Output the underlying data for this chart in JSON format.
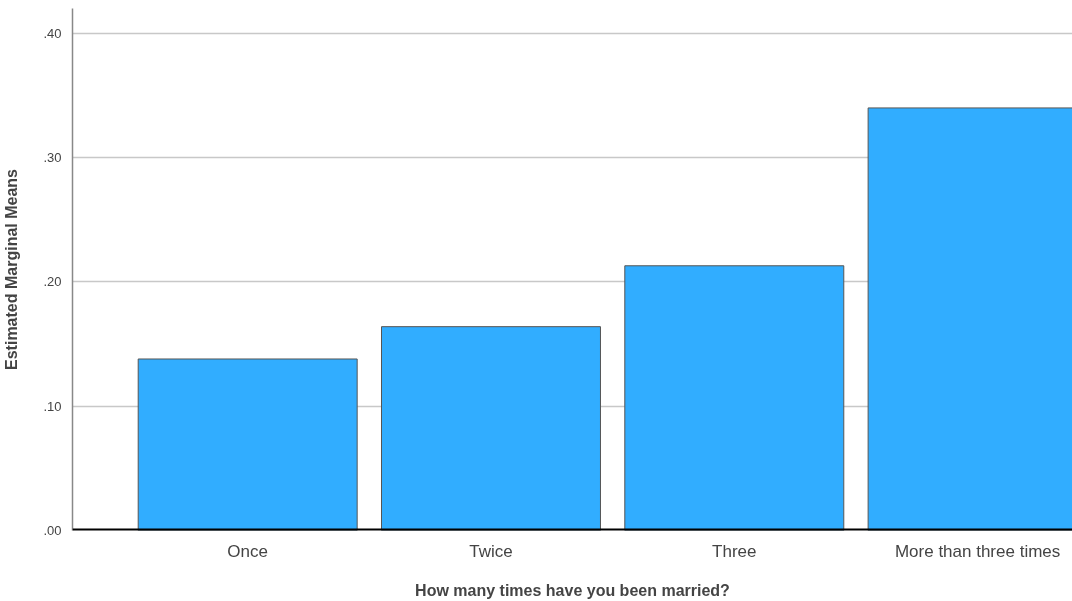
{
  "chart_data": {
    "type": "bar",
    "xlabel": "How many times have you been married?",
    "ylabel": "Estimated Marginal Means",
    "categories": [
      "Once",
      "Twice",
      "Three",
      "More than three times"
    ],
    "values": [
      0.138,
      0.164,
      0.213,
      0.34
    ],
    "color": "#31adff",
    "ylim": [
      0,
      0.42
    ],
    "yticks": [
      {
        "value": 0,
        "label": ".00"
      },
      {
        "value": 0.1,
        "label": ".10"
      },
      {
        "value": 0.2,
        "label": ".20"
      },
      {
        "value": 0.3,
        "label": ".30"
      },
      {
        "value": 0.4,
        "label": ".40"
      }
    ],
    "grid": "y"
  }
}
